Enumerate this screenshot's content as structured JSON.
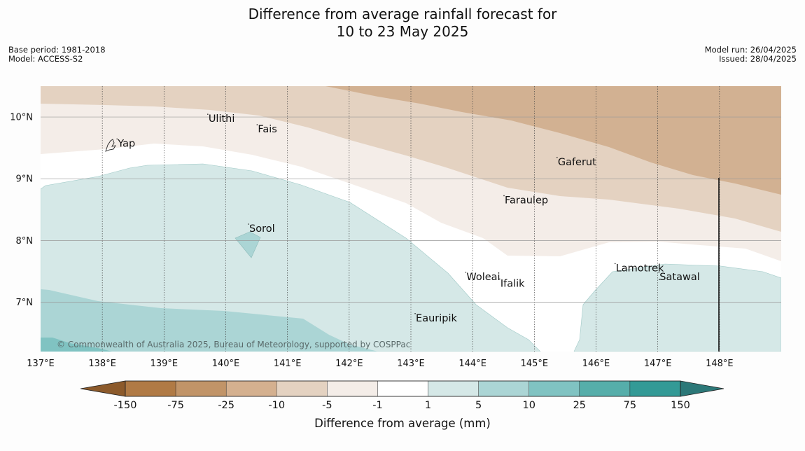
{
  "title": {
    "line1": "Difference from average rainfall forecast for",
    "line2": "10 to 23 May 2025"
  },
  "meta_left": {
    "base_period": "Base period: 1981-2018",
    "model": "Model: ACCESS-S2"
  },
  "meta_right": {
    "model_run": "Model run: 26/04/2025",
    "issued": "Issued: 28/04/2025"
  },
  "map": {
    "lon_range": [
      137,
      149
    ],
    "lat_range": [
      6.2,
      10.5
    ],
    "x_ticks": [
      "137°E",
      "138°E",
      "139°E",
      "140°E",
      "141°E",
      "142°E",
      "143°E",
      "144°E",
      "145°E",
      "146°E",
      "147°E",
      "148°E"
    ],
    "y_ticks": [
      "10°N",
      "9°N",
      "8°N",
      "7°N"
    ],
    "places": [
      {
        "name": "Yap",
        "lon": 138.25,
        "lat": 9.52
      },
      {
        "name": "Ulithi",
        "lon": 139.72,
        "lat": 9.92
      },
      {
        "name": "Fais",
        "lon": 140.52,
        "lat": 9.75
      },
      {
        "name": "Gaferut",
        "lon": 145.38,
        "lat": 9.22
      },
      {
        "name": "Faraulep",
        "lon": 144.52,
        "lat": 8.6
      },
      {
        "name": "Sorol",
        "lon": 140.38,
        "lat": 8.14
      },
      {
        "name": "Woleai",
        "lon": 143.9,
        "lat": 7.36
      },
      {
        "name": "Ifalik",
        "lon": 144.45,
        "lat": 7.25
      },
      {
        "name": "Lamotrek",
        "lon": 146.32,
        "lat": 7.5
      },
      {
        "name": "Satawal",
        "lon": 147.03,
        "lat": 7.36
      },
      {
        "name": "Eauripik",
        "lon": 143.08,
        "lat": 6.69
      }
    ],
    "copyright": "© Commonwealth of Australia 2025, Bureau of Meteorology, supported by COSPPac",
    "colors": {
      "dry_strong": "#d2b192",
      "dry_moderate": "#e4d2c1",
      "dry_light": "#f4ede8",
      "neutral": "#ffffff",
      "wet_light": "#d5e8e7",
      "wet_moderate": "#abd5d5",
      "wet_strong": "#80c3c2"
    }
  },
  "colorbar": {
    "label": "Difference from average (mm)",
    "tick_labels": [
      "-150",
      "-75",
      "-25",
      "-10",
      "-5",
      "-1",
      "1",
      "5",
      "10",
      "25",
      "75",
      "150"
    ],
    "colors": [
      "#8c5a2b",
      "#b07a45",
      "#c19468",
      "#d4b08f",
      "#e4d2c1",
      "#f4ede8",
      "#ffffff",
      "#d5e8e7",
      "#abd5d5",
      "#80c3c2",
      "#56aeaa",
      "#339a96",
      "#2c7878"
    ]
  }
}
